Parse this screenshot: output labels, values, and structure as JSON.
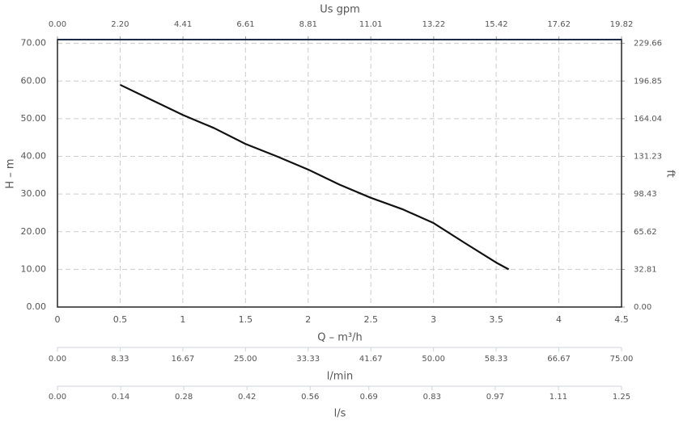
{
  "chart_data": {
    "type": "line",
    "xlabel": "Q – m³/h",
    "ylabel": "H – m",
    "y2label": "ft",
    "x": [
      0.5,
      0.75,
      1,
      1.25,
      1.5,
      1.75,
      2,
      2.25,
      2.5,
      2.75,
      3,
      3.25,
      3.5,
      3.6
    ],
    "series": [
      {
        "color": "#111111",
        "values": [
          59,
          55,
          51,
          47.5,
          43.3,
          40,
          36.5,
          32.5,
          29,
          26,
          22.3,
          17,
          11.8,
          10
        ]
      }
    ],
    "xlim": [
      0,
      4.5
    ],
    "xticks": [
      0,
      0.5,
      1,
      1.5,
      2,
      2.5,
      3,
      3.5,
      4,
      4.5
    ],
    "ylim": [
      0,
      71
    ],
    "yticks": [
      {
        "value": 0,
        "label": "0.00"
      },
      {
        "value": 10,
        "label": "10.00"
      },
      {
        "value": 20,
        "label": "20.00"
      },
      {
        "value": 30,
        "label": "30.00"
      },
      {
        "value": 40,
        "label": "40.00"
      },
      {
        "value": 50,
        "label": "50.00"
      },
      {
        "value": 60,
        "label": "60.00"
      },
      {
        "value": 70,
        "label": "70.00"
      }
    ],
    "y2lim": [
      0,
      232.94
    ],
    "y2ticks": [
      {
        "value": 0,
        "label": "0.00"
      },
      {
        "value": 32.81,
        "label": "32.81"
      },
      {
        "value": 65.62,
        "label": "65.62"
      },
      {
        "value": 98.43,
        "label": "98.43"
      },
      {
        "value": 131.23,
        "label": "131.23"
      },
      {
        "value": 164.04,
        "label": "164.04"
      },
      {
        "value": 196.85,
        "label": "196.85"
      },
      {
        "value": 229.66,
        "label": "229.66"
      }
    ],
    "x2label": "Us gpm",
    "x2lim": [
      0,
      19.82
    ],
    "x2ticks": [
      {
        "value": 0,
        "label": "0.00"
      },
      {
        "value": 2.2,
        "label": "2.20"
      },
      {
        "value": 4.41,
        "label": "4.41"
      },
      {
        "value": 6.61,
        "label": "6.61"
      },
      {
        "value": 8.81,
        "label": "8.81"
      },
      {
        "value": 11.01,
        "label": "11.01"
      },
      {
        "value": 13.22,
        "label": "13.22"
      },
      {
        "value": 15.42,
        "label": "15.42"
      },
      {
        "value": 17.62,
        "label": "17.62"
      },
      {
        "value": 19.82,
        "label": "19.82"
      }
    ],
    "x3label": "l/min",
    "x3lim": [
      0,
      75
    ],
    "x3ticks": [
      {
        "value": 0,
        "label": "0.00"
      },
      {
        "value": 8.33,
        "label": "8.33"
      },
      {
        "value": 16.67,
        "label": "16.67"
      },
      {
        "value": 25,
        "label": "25.00"
      },
      {
        "value": 33.33,
        "label": "33.33"
      },
      {
        "value": 41.67,
        "label": "41.67"
      },
      {
        "value": 50,
        "label": "50.00"
      },
      {
        "value": 58.33,
        "label": "58.33"
      },
      {
        "value": 66.67,
        "label": "66.67"
      },
      {
        "value": 75,
        "label": "75.00"
      }
    ],
    "x4label": "l/s",
    "x4lim": [
      0,
      1.25
    ],
    "x4ticks": [
      {
        "value": 0,
        "label": "0.00"
      },
      {
        "value": 0.14,
        "label": "0.14"
      },
      {
        "value": 0.28,
        "label": "0.28"
      },
      {
        "value": 0.42,
        "label": "0.42"
      },
      {
        "value": 0.56,
        "label": "0.56"
      },
      {
        "value": 0.69,
        "label": "0.69"
      },
      {
        "value": 0.83,
        "label": "0.83"
      },
      {
        "value": 0.97,
        "label": "0.97"
      },
      {
        "value": 1.11,
        "label": "1.11"
      },
      {
        "value": 1.25,
        "label": "1.25"
      }
    ],
    "grid": true
  }
}
